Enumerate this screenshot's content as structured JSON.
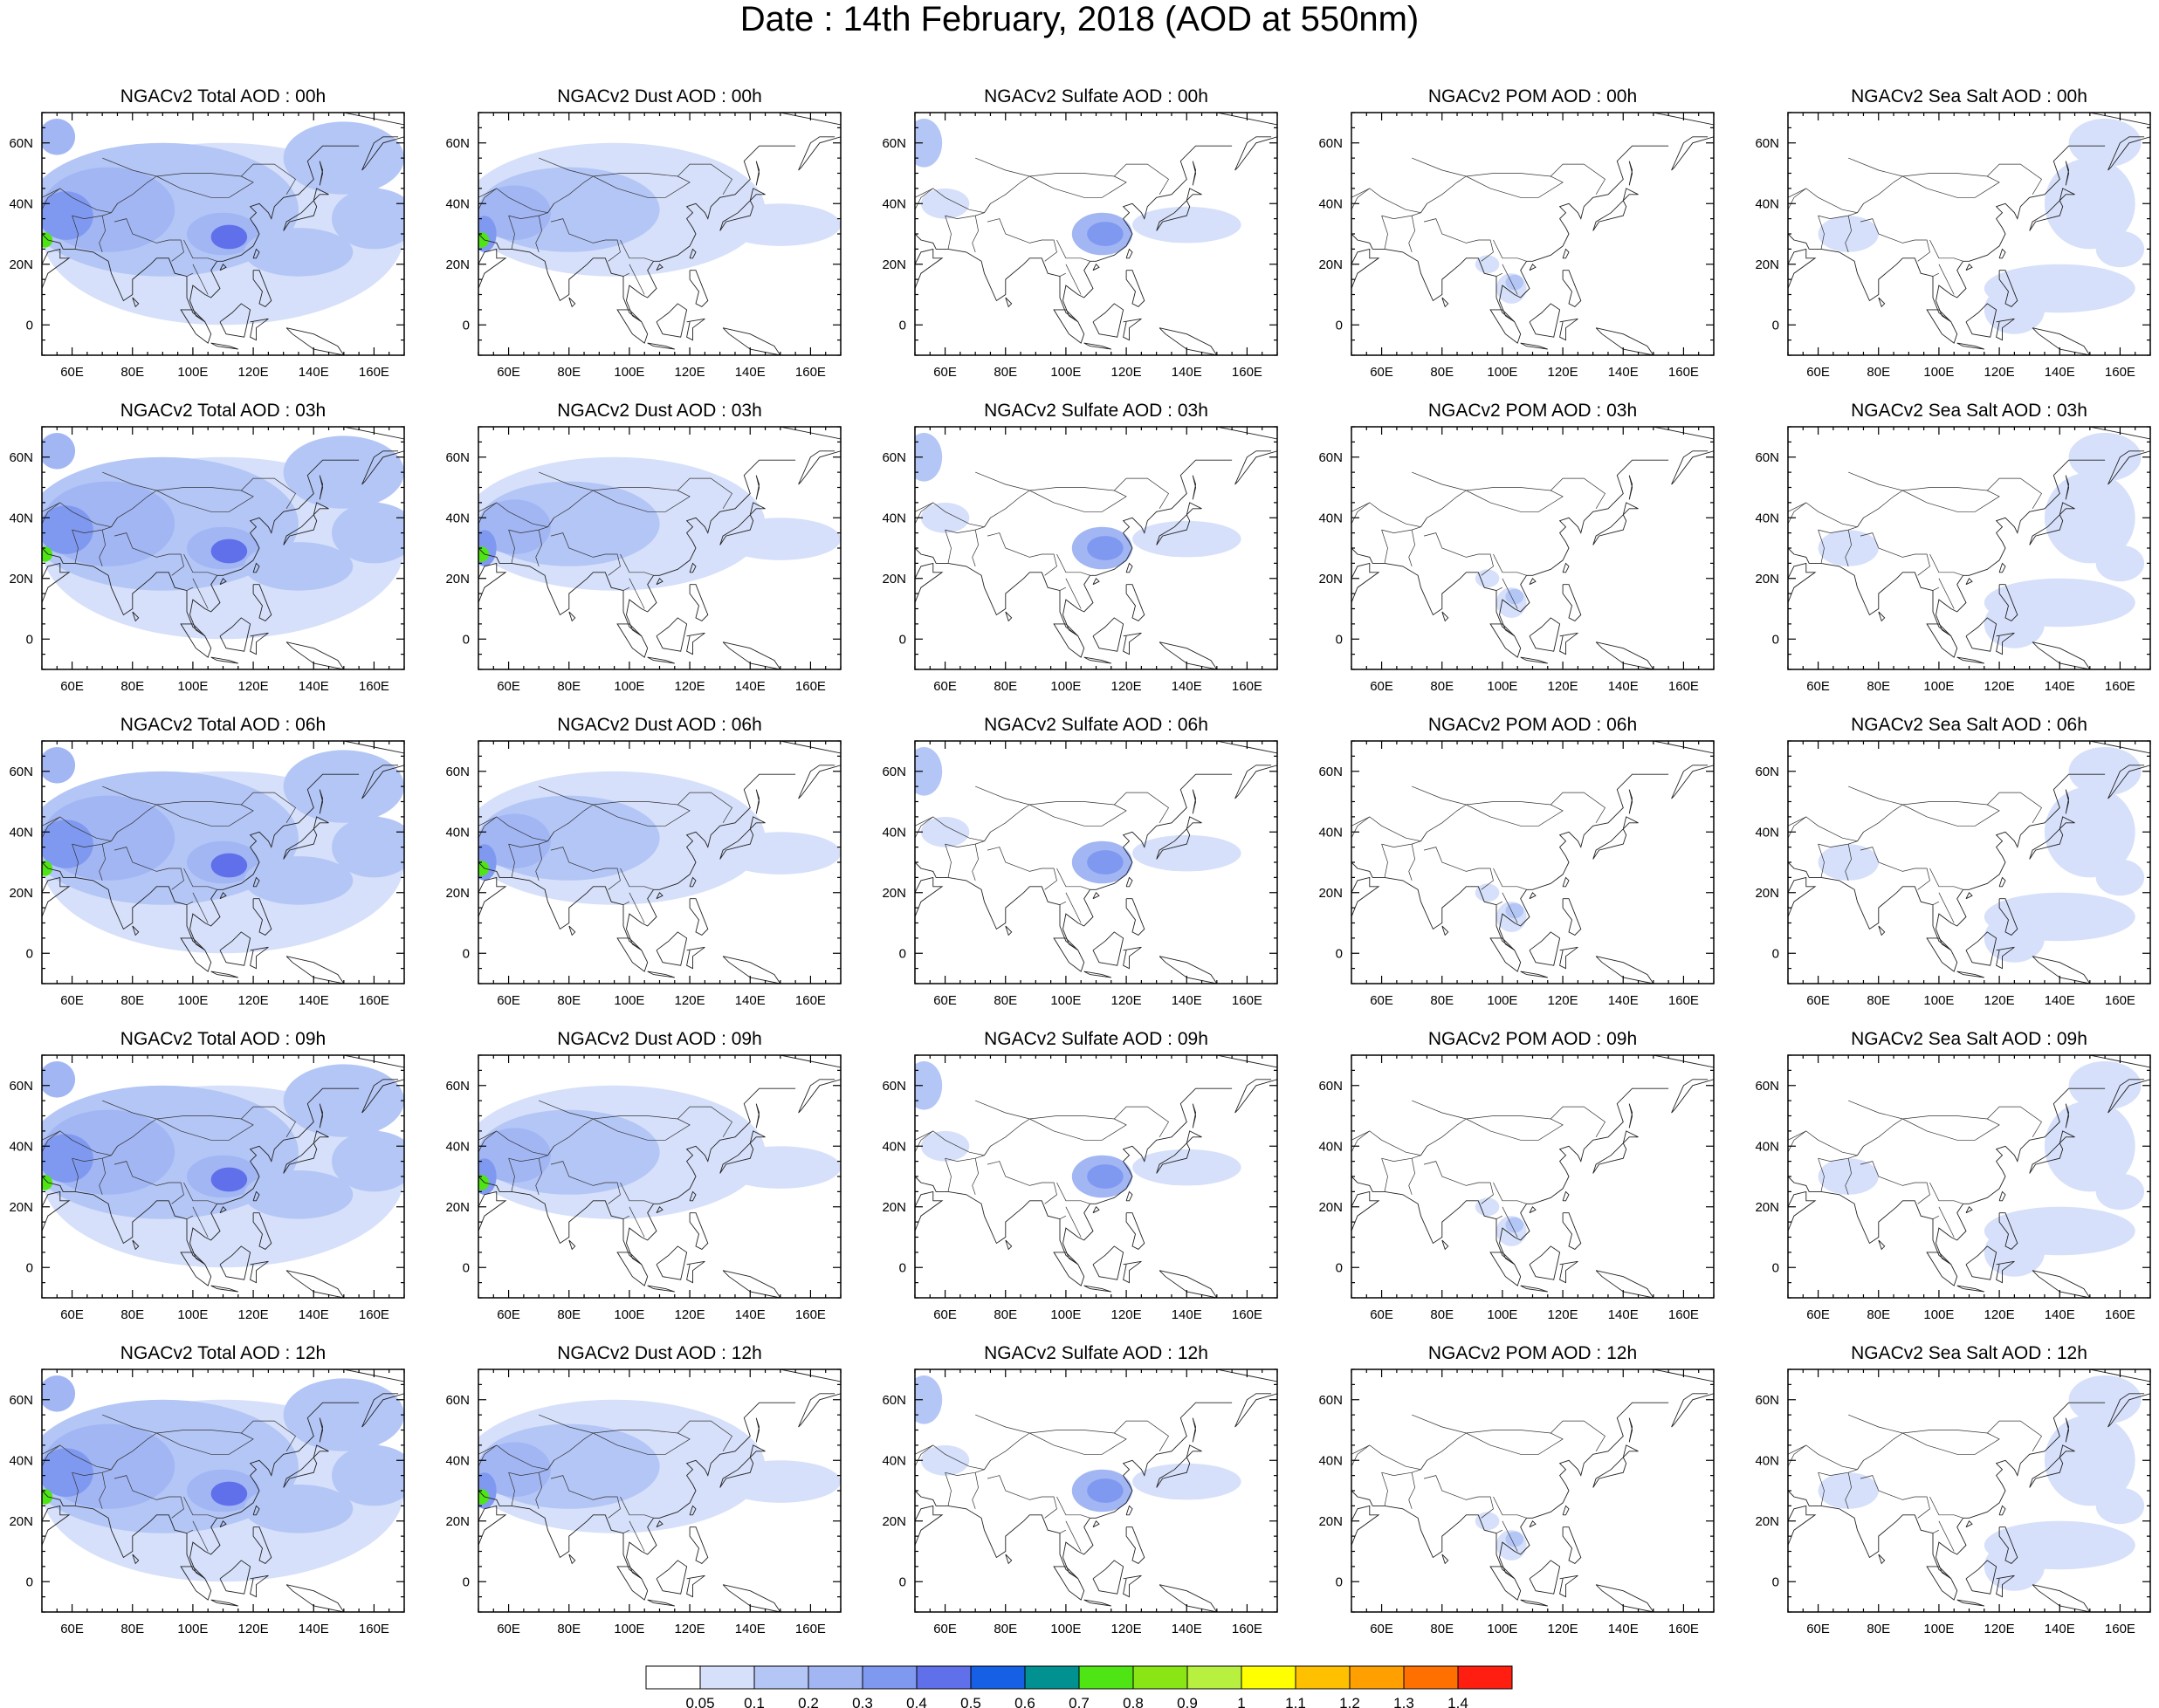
{
  "title": "Date : 14th February, 2018 (AOD at 550nm)",
  "panel_titles": [
    [
      "NGACv2 Total AOD : 00h",
      "NGACv2 Dust AOD : 00h",
      "NGACv2 Sulfate AOD : 00h",
      "NGACv2 POM AOD : 00h",
      "NGACv2 Sea Salt AOD : 00h"
    ],
    [
      "NGACv2 Total AOD : 03h",
      "NGACv2 Dust AOD : 03h",
      "NGACv2 Sulfate AOD : 03h",
      "NGACv2 POM AOD : 03h",
      "NGACv2 Sea Salt AOD : 03h"
    ],
    [
      "NGACv2 Total AOD : 06h",
      "NGACv2 Dust AOD : 06h",
      "NGACv2 Sulfate AOD : 06h",
      "NGACv2 POM AOD : 06h",
      "NGACv2 Sea Salt AOD : 06h"
    ],
    [
      "NGACv2 Total AOD : 09h",
      "NGACv2 Dust AOD : 09h",
      "NGACv2 Sulfate AOD : 09h",
      "NGACv2 POM AOD : 09h",
      "NGACv2 Sea Salt  AOD : 09h"
    ],
    [
      "NGACv2 Total AOD  : 12h",
      "NGACv2 Dust AOD : 12h",
      "NGACv2 Sulfate AOD : 12h",
      "NGACv2 POM  AOD : 12h",
      "NGACv2 Sea Salt  AOD : 12h"
    ]
  ],
  "species": [
    "total",
    "dust",
    "sulfate",
    "pom",
    "seasalt"
  ],
  "lon_ticks": [
    "60E",
    "80E",
    "100E",
    "120E",
    "140E",
    "160E"
  ],
  "lat_ticks": [
    "60N",
    "40N",
    "20N",
    "0"
  ],
  "colorbar": {
    "colors": [
      "#ffffff",
      "#d6e0fa",
      "#b4c6f6",
      "#a2b6f4",
      "#8099f0",
      "#6070ea",
      "#1560e5",
      "#009190",
      "#4fe514",
      "#8ae514",
      "#b8f040",
      "#ffff00",
      "#ffc000",
      "#ffa000",
      "#ff7000",
      "#ff1e10"
    ],
    "labels": [
      "0.05",
      "0.1",
      "0.2",
      "0.3",
      "0.4",
      "0.5",
      "0.6",
      "0.7",
      "0.8",
      "0.9",
      "1",
      "1.1",
      "1.2",
      "1.3",
      "1.4"
    ]
  }
}
